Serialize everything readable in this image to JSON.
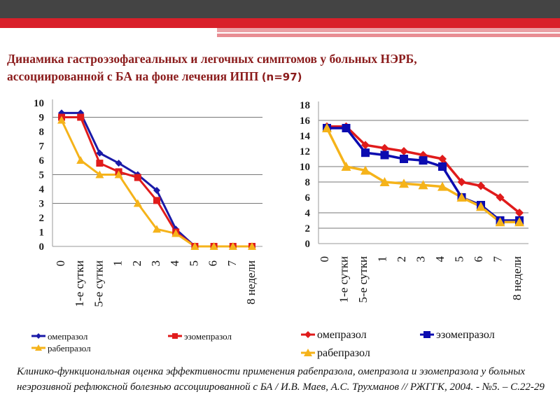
{
  "title": {
    "line1": "Динамика гастроэзофагеальных и легочных симптомов у больных НЭРБ,",
    "line2": "ассоциированной с БА на фоне лечения ИПП ",
    "n": "(n=97)"
  },
  "caption": "Клинико-функциональная оценка эффективности применения рабепразола, омепразола и эзомепразола у больных неэрозивной рефлюксной болезнью ассоциированной с БА / И.В. Маев, А.С. Трухманов // РЖГГК, 2004. - №5. – С.22-29",
  "chart_data": [
    {
      "type": "line",
      "ylim": [
        0,
        10
      ],
      "yticks": [
        "0",
        "1",
        "2",
        "3",
        "4",
        "5",
        "6",
        "7",
        "8",
        "9",
        "10"
      ],
      "grid": [
        3,
        5,
        9
      ],
      "categories": [
        "0",
        "1-е сутки",
        "5-е сутки",
        "1",
        "2",
        "3",
        "4",
        "5",
        "6",
        "7",
        "8 недели"
      ],
      "legend_placement": "bottom",
      "series": [
        {
          "name": "омепразол",
          "color": "#1a1aa8",
          "marker": "diamond",
          "values": [
            9.3,
            9.3,
            6.5,
            5.8,
            5.0,
            3.9,
            1.2,
            0,
            0,
            0,
            0
          ]
        },
        {
          "name": "эзомепразол",
          "color": "#e01b1b",
          "marker": "square",
          "values": [
            9.0,
            9.0,
            5.8,
            5.2,
            4.8,
            3.2,
            1.0,
            0,
            0,
            0,
            0
          ]
        },
        {
          "name": "рабепразол",
          "color": "#f5b31a",
          "marker": "triangle",
          "values": [
            8.8,
            6.0,
            5.0,
            5.0,
            3.0,
            1.2,
            0.9,
            0,
            0,
            0,
            0
          ]
        }
      ]
    },
    {
      "type": "line",
      "ylim": [
        0,
        18
      ],
      "yticks": [
        "0",
        "2",
        "4",
        "6",
        "8",
        "10",
        "12",
        "14",
        "16",
        "18"
      ],
      "grid": [
        2,
        4,
        8,
        10,
        16
      ],
      "categories": [
        "0",
        "1-е сутки",
        "5-е сутки",
        "1",
        "2",
        "3",
        "4",
        "5",
        "6",
        "7",
        "8 недели"
      ],
      "legend_placement": "bottom",
      "series": [
        {
          "name": "омепразол",
          "color": "#e01b1b",
          "marker": "diamond",
          "values": [
            15.2,
            15.2,
            12.8,
            12.4,
            12.0,
            11.5,
            11.0,
            8.0,
            7.5,
            6.0,
            4.0
          ]
        },
        {
          "name": "эзомепразол",
          "color": "#0c0cb0",
          "marker": "square",
          "values": [
            15.0,
            15.0,
            11.8,
            11.5,
            11.0,
            10.8,
            10.0,
            6.0,
            5.0,
            3.0,
            3.0
          ]
        },
        {
          "name": "рабепразол",
          "color": "#f5b31a",
          "marker": "triangle",
          "values": [
            15.0,
            10.0,
            9.5,
            8.0,
            7.8,
            7.6,
            7.4,
            6.0,
            4.8,
            2.8,
            2.8
          ]
        }
      ]
    }
  ]
}
